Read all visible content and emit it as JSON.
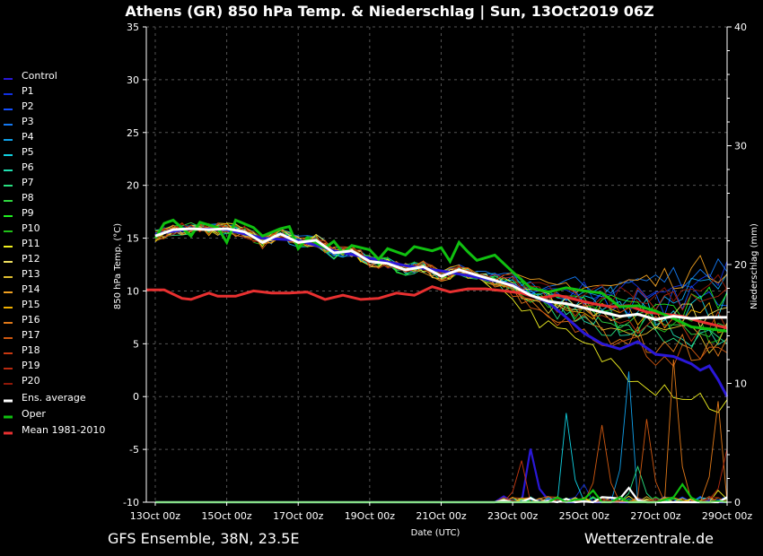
{
  "title": "Athens  (GR)  850 hPa Temp. & Niederschlag | Sun, 13Oct2019 06Z",
  "footer_left": "GFS Ensemble, 38N, 23.5E",
  "footer_right": "Wetterzentrale.de",
  "chart_data": {
    "type": "line",
    "xlabel": "Date (UTC)",
    "ylabel": "850 hPa Temp. (°C)",
    "ylabel_right": "Niederschlag (mm)",
    "ylim": [
      -10,
      35
    ],
    "ylim_right": [
      0,
      40
    ],
    "xlim": [
      -0.25,
      16
    ],
    "x_unit": "days after 13Oct 00z",
    "x_ticks": [
      {
        "v": 0,
        "label": "13Oct 00z"
      },
      {
        "v": 2,
        "label": "15Oct 00z"
      },
      {
        "v": 4,
        "label": "17Oct 00z"
      },
      {
        "v": 6,
        "label": "19Oct 00z"
      },
      {
        "v": 8,
        "label": "21Oct 00z"
      },
      {
        "v": 10,
        "label": "23Oct 00z"
      },
      {
        "v": 12,
        "label": "25Oct 00z"
      },
      {
        "v": 14,
        "label": "27Oct 00z"
      },
      {
        "v": 16,
        "label": "29Oct 00z"
      }
    ],
    "y_ticks": [
      35,
      30,
      25,
      20,
      15,
      10,
      5,
      0,
      -5,
      -10
    ],
    "y_ticks_right": [
      40,
      30,
      20,
      10,
      0
    ],
    "grid": true,
    "legend_position": "left",
    "series": [
      {
        "name": "Control",
        "color": "#2a18d8",
        "temp_end": 0.0,
        "precip_peaks": [
          [
            10.6,
            4.5
          ]
        ]
      },
      {
        "name": "P1",
        "color": "#1030e0",
        "temp_end": 11.5,
        "precip_peaks": [
          [
            11.9,
            1.5
          ]
        ]
      },
      {
        "name": "P2",
        "color": "#1450ff",
        "temp_end": 9.5,
        "precip_peaks": []
      },
      {
        "name": "P3",
        "color": "#1478f0",
        "temp_end": 12.5,
        "precip_peaks": [
          [
            16,
            0.5
          ]
        ]
      },
      {
        "name": "P4",
        "color": "#10a0e8",
        "temp_end": 10.5,
        "precip_peaks": [
          [
            13.2,
            11
          ]
        ]
      },
      {
        "name": "P5",
        "color": "#10d0e0",
        "temp_end": 8.5,
        "precip_peaks": [
          [
            11.6,
            7.5
          ]
        ]
      },
      {
        "name": "P6",
        "color": "#20e0b0",
        "temp_end": 6.0,
        "precip_peaks": []
      },
      {
        "name": "P7",
        "color": "#28e080",
        "temp_end": 5.0,
        "precip_peaks": [
          [
            13.5,
            3
          ]
        ]
      },
      {
        "name": "P8",
        "color": "#30d840",
        "temp_end": 7.0,
        "precip_peaks": []
      },
      {
        "name": "P9",
        "color": "#20f020",
        "temp_end": 9.0,
        "precip_peaks": []
      },
      {
        "name": "P10",
        "color": "#20c018",
        "temp_end": 6.5,
        "precip_peaks": []
      },
      {
        "name": "P11",
        "color": "#f0f020",
        "temp_end": -1.0,
        "precip_peaks": [
          [
            15.8,
            1
          ]
        ]
      },
      {
        "name": "P12",
        "color": "#f0e060",
        "temp_end": 8.0,
        "precip_peaks": []
      },
      {
        "name": "P13",
        "color": "#e0c030",
        "temp_end": 5.5,
        "precip_peaks": []
      },
      {
        "name": "P14",
        "color": "#f0a020",
        "temp_end": 12.5,
        "precip_peaks": []
      },
      {
        "name": "P15",
        "color": "#f0b000",
        "temp_end": 7.5,
        "precip_peaks": []
      },
      {
        "name": "P16",
        "color": "#e07818",
        "temp_end": 4.0,
        "precip_peaks": [
          [
            14.6,
            12
          ],
          [
            15.7,
            8.5
          ]
        ]
      },
      {
        "name": "P17",
        "color": "#d05810",
        "temp_end": 3.0,
        "precip_peaks": [
          [
            12.5,
            6.5
          ],
          [
            13.8,
            7
          ]
        ]
      },
      {
        "name": "P18",
        "color": "#c83810",
        "temp_end": 6.5,
        "precip_peaks": [
          [
            10.2,
            3.5
          ]
        ]
      },
      {
        "name": "P19",
        "color": "#b82a10",
        "temp_end": 10.0,
        "precip_peaks": [
          [
            16,
            4.5
          ]
        ]
      },
      {
        "name": "P20",
        "color": "#901808",
        "temp_end": 11.0,
        "precip_peaks": []
      },
      {
        "name": "Ens. average",
        "color": "#ffffff",
        "temp_end": 7.5,
        "precip_peaks": [
          [
            13.2,
            1.2
          ]
        ]
      },
      {
        "name": "Oper",
        "color": "#10c010",
        "temp_end": 6.0,
        "precip_peaks": [
          [
            12.2,
            1
          ],
          [
            14.8,
            1.5
          ]
        ]
      },
      {
        "name": "Mean 1981-2010",
        "color": "#e83030",
        "temp_end": 6.5
      }
    ],
    "ensemble_average_temp": [
      [
        0,
        15.2
      ],
      [
        0.5,
        15.8
      ],
      [
        1,
        15.9
      ],
      [
        1.5,
        15.8
      ],
      [
        2,
        15.9
      ],
      [
        2.5,
        15.6
      ],
      [
        3,
        14.6
      ],
      [
        3.5,
        15.4
      ],
      [
        4,
        14.6
      ],
      [
        4.5,
        14.8
      ],
      [
        5,
        13.6
      ],
      [
        5.5,
        13.8
      ],
      [
        6,
        12.8
      ],
      [
        6.5,
        12.6
      ],
      [
        7,
        12.0
      ],
      [
        7.5,
        12.3
      ],
      [
        8,
        11.4
      ],
      [
        8.5,
        12.0
      ],
      [
        9,
        11.5
      ],
      [
        9.5,
        11.0
      ],
      [
        10,
        10.5
      ],
      [
        10.5,
        9.6
      ],
      [
        11,
        9.0
      ],
      [
        11.5,
        8.8
      ],
      [
        12,
        8.4
      ],
      [
        12.5,
        8.0
      ],
      [
        13,
        7.6
      ],
      [
        13.5,
        7.8
      ],
      [
        14,
        7.3
      ],
      [
        14.5,
        7.6
      ],
      [
        15,
        7.4
      ],
      [
        15.5,
        7.5
      ],
      [
        16,
        7.5
      ]
    ],
    "oper_temp": [
      [
        0,
        15.0
      ],
      [
        0.25,
        16.4
      ],
      [
        0.5,
        16.7
      ],
      [
        1,
        15.2
      ],
      [
        1.25,
        16.5
      ],
      [
        1.75,
        16.0
      ],
      [
        2,
        14.6
      ],
      [
        2.25,
        16.7
      ],
      [
        2.75,
        16.0
      ],
      [
        3,
        15.2
      ],
      [
        3.5,
        15.9
      ],
      [
        3.75,
        16.1
      ],
      [
        4,
        14.0
      ],
      [
        4.25,
        15.0
      ],
      [
        4.75,
        14.1
      ],
      [
        5,
        14.7
      ],
      [
        5.25,
        13.6
      ],
      [
        5.5,
        14.3
      ],
      [
        6,
        13.9
      ],
      [
        6.25,
        13.0
      ],
      [
        6.5,
        14.0
      ],
      [
        7,
        13.4
      ],
      [
        7.25,
        14.2
      ],
      [
        7.75,
        13.8
      ],
      [
        8,
        14.1
      ],
      [
        8.25,
        12.8
      ],
      [
        8.5,
        14.6
      ],
      [
        8.75,
        13.7
      ],
      [
        9,
        12.9
      ],
      [
        9.5,
        13.4
      ],
      [
        10,
        11.8
      ],
      [
        10.5,
        10.3
      ],
      [
        11,
        9.9
      ],
      [
        11.5,
        10.3
      ],
      [
        12,
        10.0
      ],
      [
        12.5,
        9.8
      ],
      [
        13,
        8.5
      ],
      [
        13.5,
        8.6
      ],
      [
        14,
        8.1
      ],
      [
        14.5,
        7.4
      ],
      [
        15,
        6.6
      ],
      [
        15.5,
        6.4
      ],
      [
        16,
        6.2
      ]
    ],
    "control_temp": [
      [
        0,
        15.4
      ],
      [
        1,
        15.9
      ],
      [
        2,
        15.8
      ],
      [
        3,
        15.0
      ],
      [
        4,
        14.8
      ],
      [
        5,
        13.8
      ],
      [
        6,
        13.1
      ],
      [
        7,
        12.4
      ],
      [
        8,
        11.9
      ],
      [
        9,
        11.3
      ],
      [
        10,
        10.6
      ],
      [
        10.5,
        9.6
      ],
      [
        11,
        8.9
      ],
      [
        11.5,
        7.5
      ],
      [
        12,
        6.0
      ],
      [
        12.5,
        5.0
      ],
      [
        13,
        4.5
      ],
      [
        13.5,
        5.2
      ],
      [
        14,
        4.0
      ],
      [
        14.5,
        3.8
      ],
      [
        15,
        3.1
      ],
      [
        15.25,
        2.5
      ],
      [
        15.5,
        2.9
      ],
      [
        15.75,
        1.6
      ],
      [
        16,
        0.0
      ]
    ],
    "mean_1981_2010_temp": [
      [
        -0.25,
        10.1
      ],
      [
        0.25,
        10.1
      ],
      [
        0.75,
        9.3
      ],
      [
        1,
        9.2
      ],
      [
        1.5,
        9.8
      ],
      [
        1.75,
        9.5
      ],
      [
        2.25,
        9.5
      ],
      [
        2.75,
        10.0
      ],
      [
        3.25,
        9.8
      ],
      [
        3.75,
        9.8
      ],
      [
        4.25,
        9.9
      ],
      [
        4.75,
        9.2
      ],
      [
        5.25,
        9.6
      ],
      [
        5.75,
        9.2
      ],
      [
        6.25,
        9.3
      ],
      [
        6.75,
        9.8
      ],
      [
        7.25,
        9.6
      ],
      [
        7.75,
        10.4
      ],
      [
        8.25,
        9.9
      ],
      [
        8.75,
        10.2
      ],
      [
        9.25,
        10.2
      ],
      [
        9.75,
        10.0
      ],
      [
        10.25,
        9.8
      ],
      [
        10.75,
        9.3
      ],
      [
        11.25,
        9.6
      ],
      [
        11.75,
        9.2
      ],
      [
        12.25,
        8.8
      ],
      [
        12.75,
        8.5
      ],
      [
        13.25,
        8.6
      ],
      [
        13.75,
        8.0
      ],
      [
        14.25,
        7.8
      ],
      [
        14.75,
        7.6
      ],
      [
        15.25,
        7.1
      ],
      [
        15.75,
        6.7
      ],
      [
        16,
        6.5
      ]
    ]
  }
}
